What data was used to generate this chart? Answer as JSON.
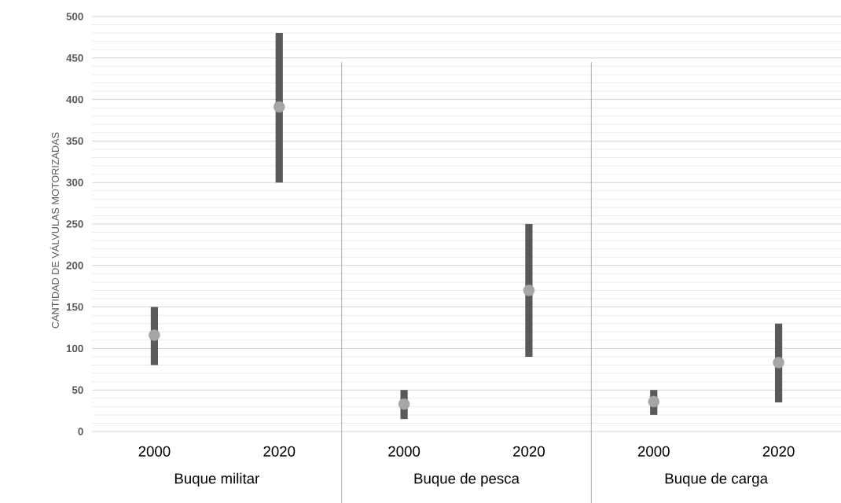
{
  "chart_data": {
    "type": "bar",
    "ylabel": "CANTIDAD DE VÁLVULAS MOTORIZADAS",
    "categories": [
      "2000",
      "2020",
      "2000",
      "2020",
      "2000",
      "2020"
    ],
    "series": [
      {
        "color": "#595959",
        "base": [
          80,
          300,
          15,
          90,
          20,
          35
        ],
        "values": [
          70,
          180,
          35,
          160,
          30,
          95
        ]
      },
      {
        "type": "scatter",
        "color": "#a6a6a6",
        "values": [
          116,
          391,
          33,
          170,
          36,
          83
        ]
      }
    ],
    "annotations": [
      "Buque militar",
      "Buque de pesca",
      "Buque de carga"
    ],
    "ylim": [
      0,
      500
    ],
    "yticks": [
      0,
      50,
      100,
      150,
      200,
      250,
      300,
      350,
      400,
      450,
      500
    ],
    "grid": "y",
    "marker": "circle"
  }
}
